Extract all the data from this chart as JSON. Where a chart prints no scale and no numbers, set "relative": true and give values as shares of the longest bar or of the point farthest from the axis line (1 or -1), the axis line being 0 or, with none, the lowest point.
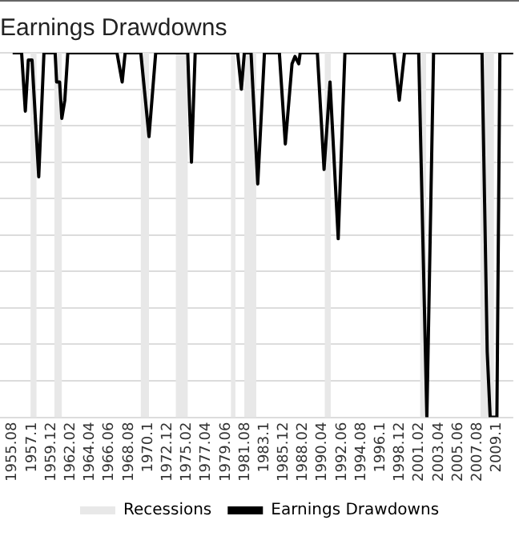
{
  "chart_data": {
    "type": "line",
    "title": "Earnings Drawdowns",
    "relative": true,
    "grid": "y",
    "legend": "bottom",
    "tick_labels": "x",
    "marker": "none",
    "line_style": "solid",
    "xlim": [
      "1954-03",
      "2011-08"
    ],
    "xticks": [
      {
        "value": "1955-08",
        "label": "1955.08"
      },
      {
        "value": "1957-10",
        "label": "1957.1"
      },
      {
        "value": "1959-12",
        "label": "1959.12"
      },
      {
        "value": "1962-02",
        "label": "1962.02"
      },
      {
        "value": "1964-04",
        "label": "1964.04"
      },
      {
        "value": "1966-06",
        "label": "1966.06"
      },
      {
        "value": "1968-08",
        "label": "1968.08"
      },
      {
        "value": "1970-10",
        "label": "1970.1"
      },
      {
        "value": "1972-12",
        "label": "1972.12"
      },
      {
        "value": "1975-02",
        "label": "1975.02"
      },
      {
        "value": "1977-04",
        "label": "1977.04"
      },
      {
        "value": "1979-06",
        "label": "1979.06"
      },
      {
        "value": "1981-08",
        "label": "1981.08"
      },
      {
        "value": "1983-10",
        "label": "1983.1"
      },
      {
        "value": "1985-12",
        "label": "1985.12"
      },
      {
        "value": "1988-02",
        "label": "1988.02"
      },
      {
        "value": "1990-04",
        "label": "1990.04"
      },
      {
        "value": "1992-06",
        "label": "1992.06"
      },
      {
        "value": "1994-08",
        "label": "1994.08"
      },
      {
        "value": "1996-10",
        "label": "1996.1"
      },
      {
        "value": "1998-12",
        "label": "1998.12"
      },
      {
        "value": "2001-02",
        "label": "2001.02"
      },
      {
        "value": "2003-04",
        "label": "2003.04"
      },
      {
        "value": "2005-06",
        "label": "2005.06"
      },
      {
        "value": "2007-08",
        "label": "2007.08"
      },
      {
        "value": "2009-10",
        "label": "2009.1"
      }
    ],
    "bands": [
      {
        "axis": "x",
        "from": "1957-08",
        "to": "1958-04",
        "label": "Recessions",
        "color": "#e8e8e8"
      },
      {
        "axis": "x",
        "from": "1960-04",
        "to": "1961-02",
        "color": "#e8e8e8"
      },
      {
        "axis": "x",
        "from": "1969-12",
        "to": "1970-11",
        "color": "#e8e8e8"
      },
      {
        "axis": "x",
        "from": "1973-11",
        "to": "1975-03",
        "color": "#e8e8e8"
      },
      {
        "axis": "x",
        "from": "1980-01",
        "to": "1980-07",
        "color": "#e8e8e8"
      },
      {
        "axis": "x",
        "from": "1981-07",
        "to": "1982-11",
        "color": "#e8e8e8"
      },
      {
        "axis": "x",
        "from": "1990-07",
        "to": "1991-03",
        "color": "#e8e8e8"
      },
      {
        "axis": "x",
        "from": "2001-03",
        "to": "2001-11",
        "color": "#e8e8e8"
      },
      {
        "axis": "x",
        "from": "2007-12",
        "to": "2009-06",
        "color": "#e8e8e8"
      }
    ],
    "series": [
      {
        "name": "Earnings Drawdowns",
        "color": "#000000",
        "x": [
          "1955-08",
          "1956-08",
          "1957-01",
          "1957-05",
          "1957-10",
          "1958-07",
          "1959-02",
          "1960-05",
          "1960-07",
          "1960-11",
          "1961-02",
          "1961-06",
          "1961-10",
          "1967-04",
          "1967-11",
          "1968-03",
          "1969-12",
          "1970-11",
          "1971-08",
          "1975-03",
          "1975-08",
          "1976-01",
          "1980-10",
          "1981-03",
          "1981-07",
          "1982-04",
          "1983-01",
          "1983-10",
          "1985-06",
          "1986-02",
          "1986-11",
          "1987-03",
          "1987-08",
          "1987-10",
          "1989-09",
          "1990-06",
          "1991-02",
          "1992-01",
          "1992-10",
          "1998-04",
          "1998-11",
          "1999-06",
          "2001-01",
          "2001-12",
          "2002-09",
          "2008-02",
          "2008-09",
          "2009-01",
          "2009-10",
          "2010-02",
          "2011-08"
        ],
        "values": [
          0,
          0,
          -0.16,
          -0.02,
          -0.02,
          -0.34,
          0,
          0,
          -0.08,
          -0.08,
          -0.18,
          -0.13,
          0,
          0,
          -0.08,
          0,
          0,
          -0.23,
          0,
          0,
          -0.3,
          0,
          0,
          -0.1,
          0,
          0,
          -0.36,
          0,
          0,
          -0.25,
          -0.03,
          -0.01,
          -0.03,
          0,
          0,
          -0.32,
          -0.08,
          -0.51,
          0,
          0,
          -0.13,
          0,
          0,
          -1,
          0,
          0,
          -0.82,
          -1,
          -1,
          0,
          0
        ]
      }
    ]
  }
}
